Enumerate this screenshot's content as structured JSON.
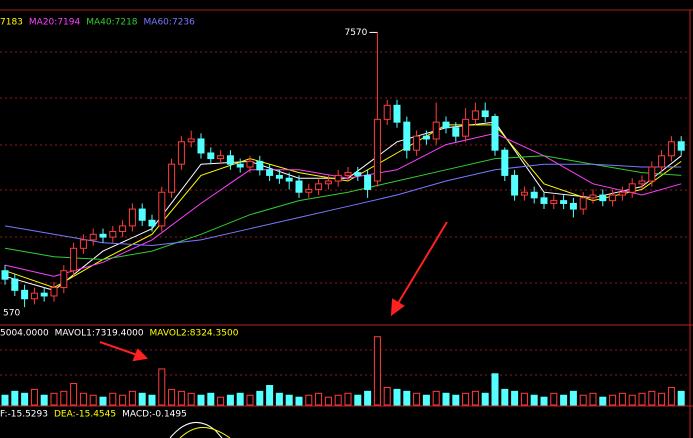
{
  "chart_data": {
    "type": "candlestick",
    "up_color": "#ff3c3c",
    "down_color": "#54ffff",
    "ylim": [
      6530,
      7650
    ],
    "low_label": "570",
    "open": [
      6720,
      6690,
      6650,
      6620,
      6640,
      6630,
      6660,
      6720,
      6800,
      6830,
      6850,
      6840,
      6860,
      6880,
      6940,
      6900,
      6880,
      7000,
      7100,
      7180,
      7190,
      7140,
      7120,
      7130,
      7100,
      7090,
      7110,
      7080,
      7060,
      7050,
      7040,
      7000,
      7010,
      7030,
      7040,
      7060,
      7070,
      7060,
      7040,
      7260,
      7310,
      7250,
      7150,
      7200,
      7190,
      7250,
      7230,
      7200,
      7260,
      7290,
      7270,
      7150,
      7060,
      6990,
      7000,
      6980,
      6960,
      6970,
      6960,
      6940,
      6980,
      6990,
      6970,
      6990,
      7000,
      7030,
      7040,
      7090,
      7130,
      7180
    ],
    "high": [
      6740,
      6710,
      6670,
      6660,
      6660,
      6680,
      6740,
      6820,
      6850,
      6870,
      6870,
      6880,
      6900,
      6960,
      6960,
      6920,
      7020,
      7120,
      7200,
      7220,
      7210,
      7160,
      7150,
      7150,
      7120,
      7130,
      7130,
      7100,
      7080,
      7070,
      7060,
      7030,
      7050,
      7060,
      7080,
      7090,
      7090,
      7080,
      7570,
      7330,
      7330,
      7270,
      7220,
      7220,
      7320,
      7270,
      7250,
      7300,
      7320,
      7320,
      7280,
      7160,
      7080,
      7020,
      7020,
      7000,
      6990,
      6990,
      6980,
      7000,
      7010,
      7010,
      7010,
      7020,
      7050,
      7060,
      7110,
      7150,
      7200,
      7200
    ],
    "low": [
      6670,
      6630,
      6590,
      6600,
      6610,
      6610,
      6640,
      6700,
      6780,
      6810,
      6820,
      6820,
      6840,
      6860,
      6880,
      6860,
      6860,
      6980,
      7080,
      7160,
      7120,
      7100,
      7100,
      7080,
      7070,
      7070,
      7060,
      7040,
      7030,
      7010,
      6980,
      6980,
      6990,
      7010,
      7020,
      7040,
      7040,
      6980,
      7020,
      7240,
      7230,
      7120,
      7130,
      7170,
      7170,
      7210,
      7180,
      7180,
      7240,
      7250,
      7130,
      7040,
      6970,
      6970,
      6960,
      6940,
      6940,
      6940,
      6910,
      6920,
      6960,
      6950,
      6950,
      6970,
      6980,
      7010,
      7020,
      7070,
      7110,
      7130
    ],
    "close": [
      6690,
      6650,
      6620,
      6640,
      6630,
      6660,
      6720,
      6800,
      6830,
      6850,
      6840,
      6860,
      6880,
      6940,
      6900,
      6880,
      7000,
      7100,
      7180,
      7190,
      7140,
      7120,
      7130,
      7100,
      7090,
      7110,
      7080,
      7060,
      7050,
      7040,
      7000,
      7010,
      7030,
      7040,
      7060,
      7070,
      7060,
      7010,
      7260,
      7310,
      7250,
      7150,
      7200,
      7190,
      7250,
      7230,
      7200,
      7260,
      7290,
      7270,
      7150,
      7060,
      6990,
      7000,
      6980,
      6960,
      6970,
      6960,
      6940,
      6980,
      6990,
      6970,
      6990,
      7000,
      7030,
      7040,
      7090,
      7130,
      7180,
      7150
    ],
    "ma_x": [
      0,
      5,
      10,
      15,
      20,
      25,
      30,
      35,
      40,
      45,
      50,
      55,
      60,
      65,
      69
    ],
    "series": [
      {
        "color": "#ffffff",
        "values": [
          6700,
          6650,
          6790,
          6870,
          7100,
          7110,
          7050,
          7050,
          7180,
          7230,
          7250,
          7000,
          6980,
          7020,
          7130
        ]
      },
      {
        "name": "7183",
        "color": "#ffff00",
        "values": [
          6720,
          6660,
          6760,
          6850,
          7060,
          7120,
          7070,
          7040,
          7140,
          7240,
          7240,
          7030,
          6970,
          7010,
          7110
        ]
      },
      {
        "name": "MA20:7194",
        "color": "#ff40ff",
        "values": [
          6740,
          6700,
          6750,
          6830,
          6960,
          7080,
          7080,
          7050,
          7080,
          7170,
          7210,
          7130,
          7030,
          6990,
          7030
        ]
      },
      {
        "name": "MA40:7218",
        "color": "#33cc33",
        "values": [
          6800,
          6770,
          6760,
          6790,
          6850,
          6920,
          6970,
          7000,
          7040,
          7080,
          7120,
          7130,
          7100,
          7070,
          7060
        ]
      },
      {
        "name": "MA60:7236",
        "color": "#7878ff",
        "values": [
          6880,
          6850,
          6820,
          6810,
          6830,
          6870,
          6910,
          6950,
          6990,
          7040,
          7080,
          7100,
          7100,
          7090,
          7090
        ]
      }
    ],
    "volume": {
      "ylim": [
        0,
        40000
      ],
      "labels": [
        {
          "text": "5004.0000",
          "color": "#ffffff"
        },
        {
          "text": "MAVOL1:7319.4000",
          "color": "#ffffff"
        },
        {
          "text": "MAVOL2:8324.3500",
          "color": "#ffff00"
        }
      ],
      "values": [
        5000,
        7000,
        6000,
        8000,
        5000,
        6000,
        7000,
        11000,
        6000,
        5000,
        4000,
        6000,
        5000,
        7000,
        6000,
        5000,
        18500,
        8000,
        7000,
        6000,
        5000,
        6000,
        4000,
        5000,
        6000,
        5000,
        7000,
        10000,
        6000,
        5000,
        4000,
        5000,
        6000,
        4000,
        5000,
        6000,
        5000,
        7000,
        35000,
        9000,
        8000,
        7000,
        6000,
        5000,
        7000,
        6000,
        5000,
        6000,
        7000,
        6000,
        16000,
        8000,
        7000,
        6000,
        5000,
        4000,
        6000,
        5000,
        7000,
        5000,
        6000,
        4000,
        5000,
        6000,
        5000,
        6000,
        7000,
        6000,
        9000,
        7000
      ]
    },
    "macd": {
      "labels": [
        {
          "text": "F:-15.5293",
          "color": "#ffffff"
        },
        {
          "text": "DEA:-15.4545",
          "color": "#ffff00"
        },
        {
          "text": "MACD:-0.1495",
          "color": "#ffffff"
        }
      ]
    }
  }
}
